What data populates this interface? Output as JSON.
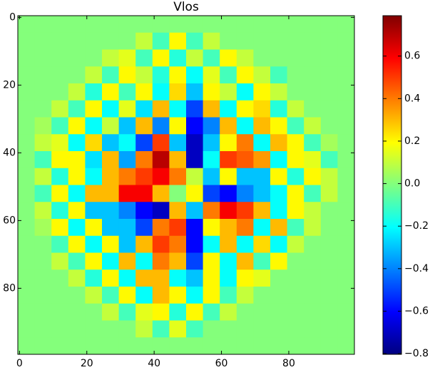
{
  "chart_data": {
    "type": "heatmap",
    "title": "Vlos",
    "colormap": "jet",
    "xlim": [
      -0.5,
      99.5
    ],
    "ylim": [
      99.5,
      -0.5
    ],
    "xticks": [
      0,
      20,
      40,
      60,
      80
    ],
    "yticks": [
      0,
      20,
      40,
      60,
      80
    ],
    "clim": [
      -0.803,
      0.79
    ],
    "cticks": [
      {
        "value": -0.8,
        "label": "−0.8"
      },
      {
        "value": -0.6,
        "label": "−0.6"
      },
      {
        "value": -0.4,
        "label": "−0.4"
      },
      {
        "value": -0.2,
        "label": "−0.2"
      },
      {
        "value": 0,
        "label": "0.0"
      },
      0.2,
      0.4,
      0.6
    ],
    "z": [
      [
        0,
        0,
        0,
        0,
        0,
        0,
        0,
        0,
        0,
        0,
        0,
        0,
        0,
        0,
        0,
        0,
        0,
        0,
        0,
        0
      ],
      [
        0,
        0,
        0,
        0,
        0,
        0,
        0,
        0.1,
        -0.1,
        0.2,
        -0.1,
        0.1,
        0,
        0,
        0,
        0,
        0,
        0,
        0,
        0
      ],
      [
        0,
        0,
        0,
        0,
        0,
        0.1,
        0.15,
        -0.1,
        0.2,
        -0.15,
        0.1,
        -0.1,
        0.2,
        0.1,
        0,
        0,
        0,
        0,
        0,
        0
      ],
      [
        0,
        0,
        0,
        0,
        0.1,
        -0.1,
        0.2,
        0.1,
        -0.15,
        0.2,
        -0.2,
        0.15,
        -0.1,
        0.2,
        0.1,
        -0.1,
        0,
        0,
        0,
        0
      ],
      [
        0,
        0,
        0,
        0.1,
        -0.15,
        0.2,
        -0.1,
        0.2,
        -0.2,
        0.25,
        -0.3,
        0.2,
        0.1,
        -0.2,
        0.2,
        0.1,
        0,
        0,
        0,
        0
      ],
      [
        0,
        0,
        0.1,
        -0.1,
        0.2,
        -0.2,
        0.15,
        -0.25,
        0.3,
        -0.2,
        -0.5,
        0.3,
        -0.2,
        0.2,
        0.25,
        -0.15,
        0.1,
        0,
        0,
        0
      ],
      [
        0,
        0.05,
        -0.1,
        0.2,
        -0.2,
        0.1,
        -0.3,
        0.3,
        -0.4,
        0.2,
        -0.6,
        -0.4,
        0.3,
        -0.2,
        0.3,
        0.2,
        -0.1,
        0.1,
        0,
        0
      ],
      [
        0,
        0.1,
        0.15,
        -0.2,
        0.25,
        -0.3,
        -0.2,
        -0.5,
        0.5,
        -0.3,
        -0.7,
        -0.3,
        0.2,
        0.4,
        -0.2,
        0.3,
        0.2,
        -0.1,
        0.05,
        0
      ],
      [
        0,
        -0.1,
        0.2,
        0.2,
        -0.25,
        0.3,
        -0.35,
        0.4,
        0.7,
        0.3,
        -0.7,
        -0.2,
        0.5,
        0.45,
        0.35,
        -0.2,
        0.2,
        0.15,
        -0.1,
        0
      ],
      [
        0,
        0.1,
        -0.15,
        0.2,
        -0.2,
        0.3,
        0.4,
        0.5,
        0.6,
        0.4,
        0.1,
        -0.3,
        0.2,
        -0.3,
        -0.3,
        0.2,
        -0.15,
        0.2,
        0.1,
        0
      ],
      [
        0,
        -0.1,
        0.2,
        -0.2,
        0.3,
        0.3,
        0.6,
        0.6,
        0.3,
        0,
        0.2,
        -0.5,
        -0.6,
        -0.4,
        -0.3,
        -0.2,
        0.2,
        -0.1,
        0.1,
        0
      ],
      [
        0,
        0.1,
        -0.15,
        0.2,
        -0.3,
        -0.3,
        -0.4,
        -0.6,
        -0.7,
        0.3,
        -0.3,
        0.4,
        0.6,
        0.5,
        0.3,
        -0.2,
        0.2,
        0.1,
        0,
        0
      ],
      [
        0,
        0.05,
        0.2,
        -0.2,
        0.2,
        -0.3,
        -0.3,
        -0.5,
        0.4,
        0.5,
        -0.6,
        0.2,
        0.3,
        0.4,
        -0.2,
        0.3,
        -0.1,
        0.1,
        0,
        0
      ],
      [
        0,
        0,
        -0.1,
        0.2,
        -0.2,
        0.2,
        -0.3,
        0.3,
        0.5,
        0.4,
        -0.6,
        -0.2,
        0.3,
        -0.2,
        0.25,
        -0.2,
        0.1,
        0,
        0,
        0
      ],
      [
        0,
        0,
        0.1,
        -0.1,
        0.2,
        -0.2,
        0.3,
        -0.2,
        0.4,
        0.3,
        -0.5,
        0.2,
        -0.2,
        0.3,
        -0.1,
        0.2,
        0,
        0,
        0,
        0
      ],
      [
        0,
        0,
        0,
        0.1,
        -0.15,
        0.2,
        -0.2,
        0.3,
        0.3,
        -0.2,
        -0.3,
        0.2,
        -0.2,
        0.2,
        0.15,
        0,
        0,
        0,
        0,
        0
      ],
      [
        0,
        0,
        0,
        0,
        0.1,
        -0.1,
        0.2,
        -0.2,
        0.3,
        0.2,
        -0.2,
        0.2,
        -0.1,
        0.1,
        0,
        0,
        0,
        0,
        0,
        0
      ],
      [
        0,
        0,
        0,
        0,
        0,
        0.1,
        -0.1,
        0.15,
        0.2,
        -0.15,
        0.2,
        -0.1,
        0.1,
        0,
        0,
        0,
        0,
        0,
        0,
        0
      ],
      [
        0,
        0,
        0,
        0,
        0,
        0,
        0,
        0.1,
        -0.1,
        0.15,
        -0.1,
        0,
        0,
        0,
        0,
        0,
        0,
        0,
        0,
        0
      ],
      [
        0,
        0,
        0,
        0,
        0,
        0,
        0,
        0,
        0,
        0,
        0,
        0,
        0,
        0,
        0,
        0,
        0,
        0,
        0,
        0
      ]
    ]
  }
}
